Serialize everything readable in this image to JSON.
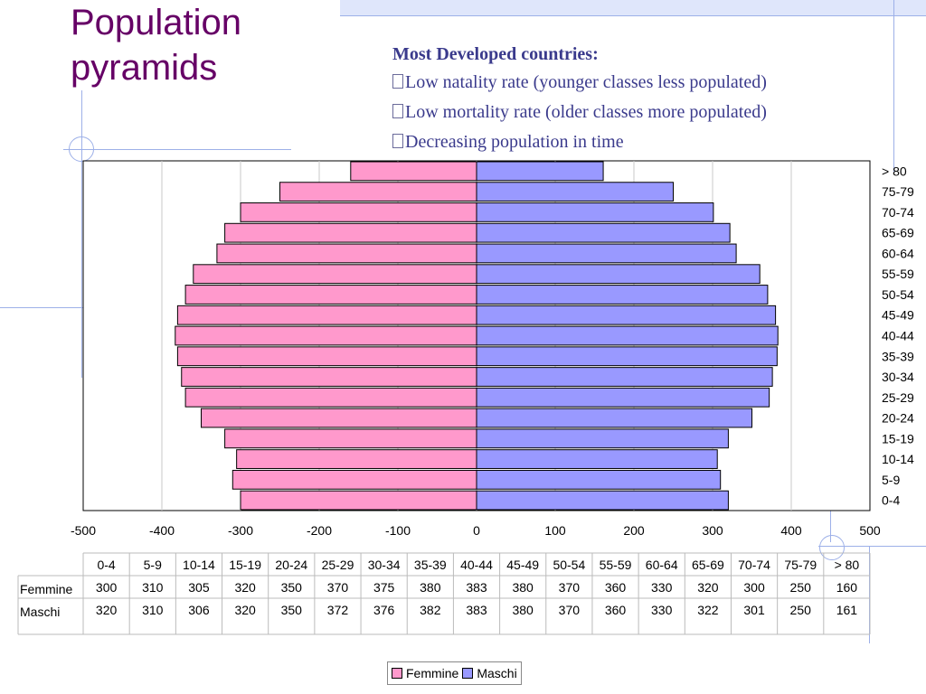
{
  "slide": {
    "title_line1": "Population",
    "title_line2": "pyramids",
    "bullet_head": "Most Developed countries:",
    "bullets": [
      "Low natality rate (younger classes less populated)",
      "Low mortality rate (older classes more populated)",
      "Decreasing population in time"
    ]
  },
  "colors": {
    "title": "#660066",
    "femmine": "#ff99cc",
    "maschi": "#9999ff",
    "decor_line": "#9db0e8"
  },
  "chart_data": {
    "type": "bar",
    "orientation": "horizontal-butterfly",
    "categories": [
      "0-4",
      "5-9",
      "10-14",
      "15-19",
      "20-24",
      "25-29",
      "30-34",
      "35-39",
      "40-44",
      "45-49",
      "50-54",
      "55-59",
      "60-64",
      "65-69",
      "70-74",
      "75-79",
      "> 80"
    ],
    "series": [
      {
        "name": "Femmine",
        "values": [
          300,
          310,
          305,
          320,
          350,
          370,
          375,
          380,
          383,
          380,
          370,
          360,
          330,
          320,
          300,
          250,
          160
        ],
        "plotted_negative": true
      },
      {
        "name": "Maschi",
        "values": [
          320,
          310,
          306,
          320,
          350,
          372,
          376,
          382,
          383,
          380,
          370,
          360,
          330,
          322,
          301,
          250,
          161
        ]
      }
    ],
    "xlim": [
      -500,
      500
    ],
    "xticks": [
      "-500",
      "-400",
      "-300",
      "-200",
      "-100",
      "0",
      "100",
      "200",
      "300",
      "400",
      "500"
    ],
    "grid": true,
    "data_table": true,
    "legend": "bottom"
  }
}
